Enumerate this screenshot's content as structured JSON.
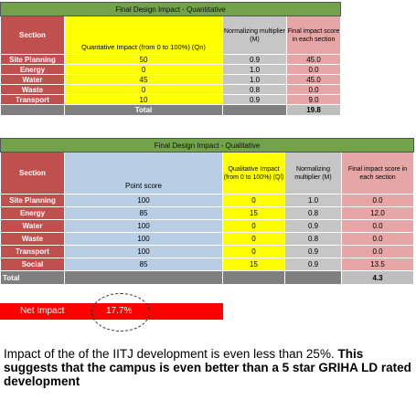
{
  "quant": {
    "title": "Final Design Impact - Quantitative",
    "headers": {
      "section": "Section",
      "impact": "Quantative Impact (from 0 to 100%) (Qn)",
      "mult": "Normalizing multiplier (M)",
      "score": "Final impact score in each section"
    },
    "rows": [
      {
        "section": "Site Planning",
        "impact": "50",
        "mult": "0.9",
        "score": "45.0"
      },
      {
        "section": "Energy",
        "impact": "0",
        "mult": "1.0",
        "score": "0.0"
      },
      {
        "section": "Water",
        "impact": "45",
        "mult": "1.0",
        "score": "45.0"
      },
      {
        "section": "Waste",
        "impact": "0",
        "mult": "0.8",
        "score": "0.0"
      },
      {
        "section": "Transport",
        "impact": "10",
        "mult": "0.9",
        "score": "9.0"
      }
    ],
    "total_label": "Total",
    "total_value": "19.8"
  },
  "qual": {
    "title": "Final Design Impact - Qualitative",
    "headers": {
      "section": "Section",
      "points": "Point score",
      "impact": "Qualitative Impact (from 0 to 100%) (Ql)",
      "mult": "Normalizing multiplier (M)",
      "score": "Final impact score in each section"
    },
    "rows": [
      {
        "section": "Site Planning",
        "points": "100",
        "impact": "0",
        "mult": "1.0",
        "score": "0.0"
      },
      {
        "section": "Energy",
        "points": "85",
        "impact": "15",
        "mult": "0.8",
        "score": "12.0"
      },
      {
        "section": "Water",
        "points": "100",
        "impact": "0",
        "mult": "0.9",
        "score": "0.0"
      },
      {
        "section": "Waste",
        "points": "100",
        "impact": "0",
        "mult": "0.8",
        "score": "0.0"
      },
      {
        "section": "Transport",
        "points": "100",
        "impact": "0",
        "mult": "0.9",
        "score": "0.0"
      },
      {
        "section": "Social",
        "points": "85",
        "impact": "15",
        "mult": "0.9",
        "score": "13.5"
      }
    ],
    "total_label": "Total",
    "total_value": "4.3"
  },
  "net": {
    "label": "Net Impact",
    "value": "17.7%"
  },
  "caption": {
    "plain": "Impact of the of the IITJ development is even less than 25%.",
    "bold": "This suggests that the campus is even better than a 5 star GRIHA LD rated development"
  }
}
